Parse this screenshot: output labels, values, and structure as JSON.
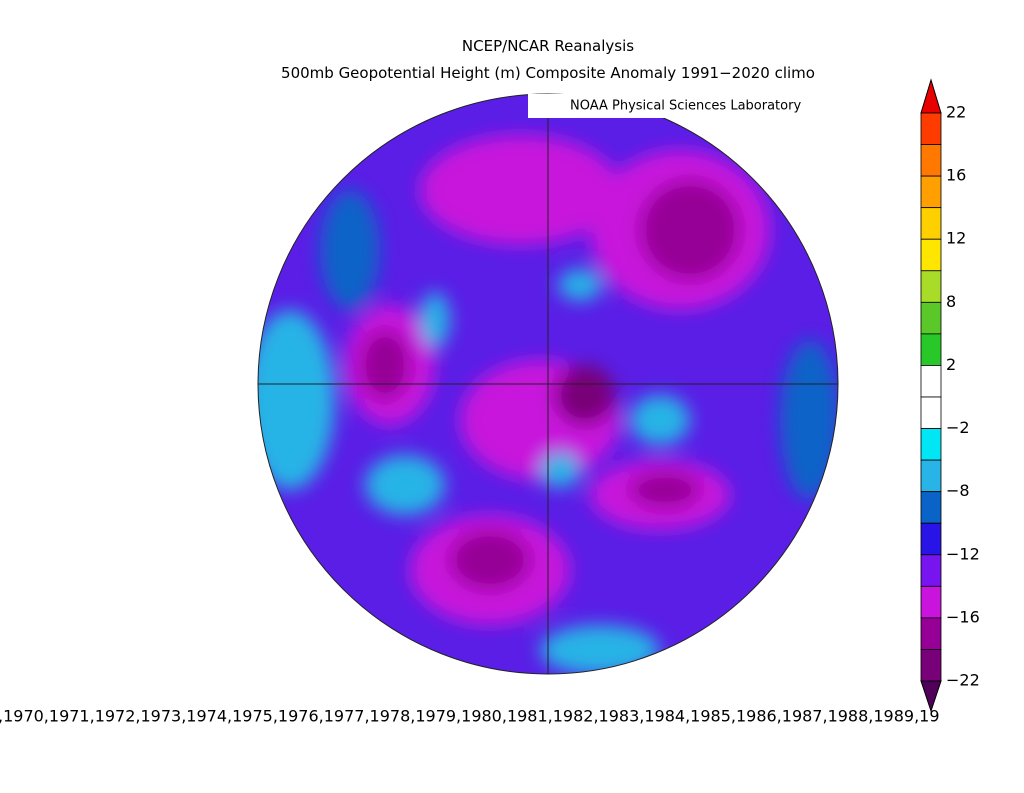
{
  "header": {
    "title": "NCEP/NCAR Reanalysis",
    "subtitle": "500mb Geopotential Height (m) Composite Anomaly 1991−2020 climo",
    "credit": "NOAA Physical Sciences Laboratory"
  },
  "colorbar": {
    "labels": [
      "22",
      "16",
      "12",
      "8",
      "2",
      "−2",
      "−8",
      "−12",
      "−16",
      "−22"
    ],
    "top_color": "#e80000",
    "bottom_color": "#50005a",
    "colors": [
      "#ff3c00",
      "#ff7800",
      "#ffa000",
      "#ffd000",
      "#ffe600",
      "#a8dc28",
      "#5ac828",
      "#28c828",
      "#ffffff",
      "#ffffff",
      "#00e6f5",
      "#28b4e6",
      "#0a64c8",
      "#2814e6",
      "#7814f0",
      "#c814dc",
      "#960096",
      "#780078"
    ]
  },
  "footer": {
    "years": ",1970,1971,1972,1973,1974,1975,1976,1977,1978,1979,1980,1981,1982,1983,1984,1985,1986,1987,1988,1989,19"
  }
}
